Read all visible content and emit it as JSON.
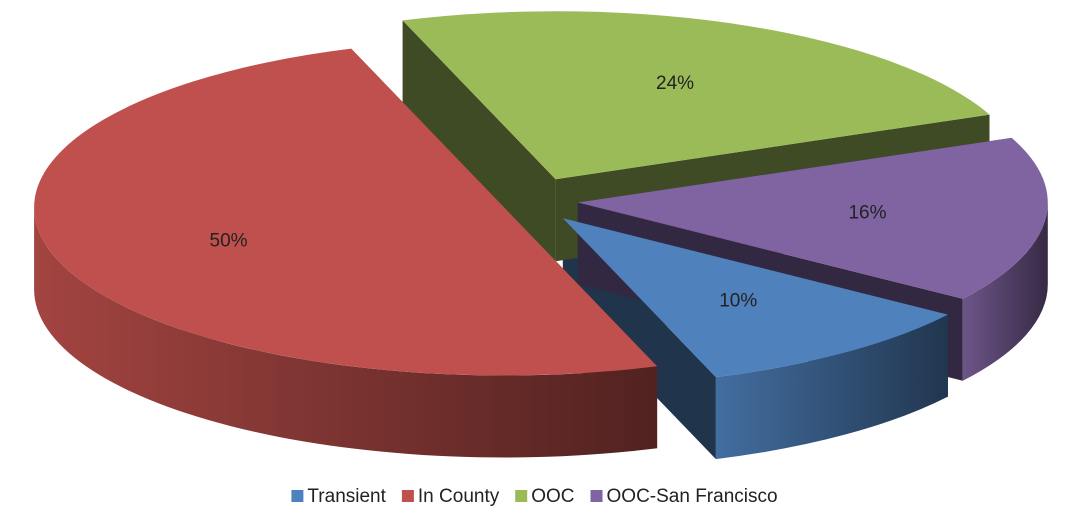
{
  "chart_data": {
    "type": "pie",
    "categories": [
      "Transient",
      "In County",
      "OOC",
      "OOC-San Francisco"
    ],
    "values": [
      10,
      50,
      24,
      16
    ],
    "value_labels": [
      "10%",
      "50%",
      "24%",
      "16%"
    ],
    "colors": [
      "#4f81bd",
      "#c0504d",
      "#9bbb59",
      "#8064a2"
    ],
    "legend": "bottom"
  }
}
